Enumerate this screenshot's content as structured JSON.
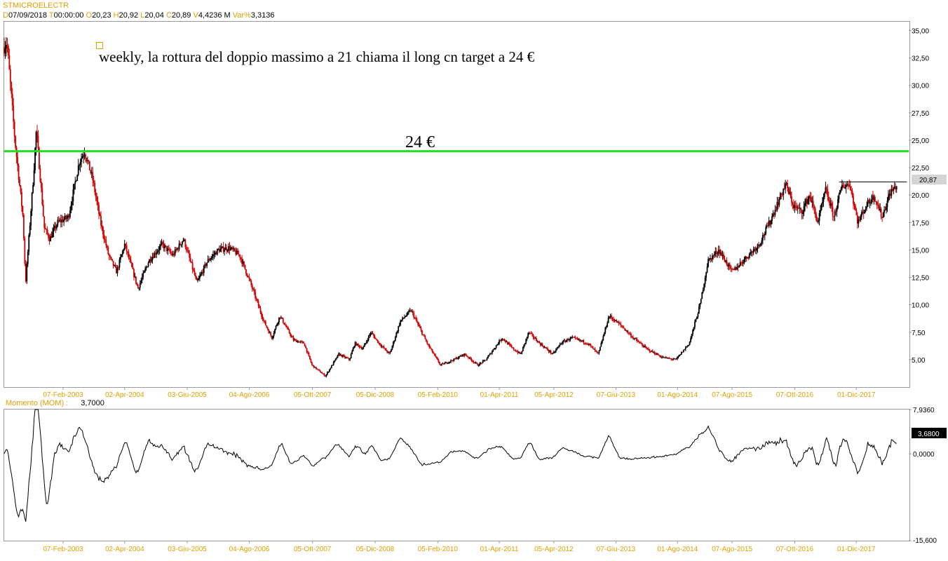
{
  "header": {
    "symbol": "STMICROELECTR",
    "date_key": "D",
    "date": "07/09/2018",
    "time_key": "T",
    "time": "00:00:00",
    "open_key": "O",
    "open": "20,23",
    "high_key": "H",
    "high": "20,92",
    "low_key": "L",
    "low": "20,04",
    "close_key": "C",
    "close": "20,89",
    "volume_key": "V",
    "volume": "4,4236 M",
    "varpct_key": "Var%",
    "varpct": "3,3136"
  },
  "annotations": {
    "main_text": "weekly, la rottura del doppio massimo a 21 chiama il long cn target a 24 €",
    "target_label": "24 €"
  },
  "colors": {
    "target_line": "#22dd22",
    "up": "#000000",
    "down": "#cc0000",
    "axis_text": "#e0a000",
    "last_price_badge": "#d4d4d4"
  },
  "chart_data": [
    {
      "type": "candlestick",
      "title": "",
      "last_price_label": "20,87",
      "ylim": [
        2.5,
        35.8
      ],
      "y_ticks": [
        "35,00",
        "32,50",
        "30,00",
        "27,50",
        "25,00",
        "22,50",
        "20,00",
        "17,50",
        "15,00",
        "12,50",
        "10,00",
        "7,50",
        "5,00"
      ],
      "y_tick_values": [
        35,
        32.5,
        30,
        27.5,
        25,
        22.5,
        20,
        17.5,
        15,
        12.5,
        10,
        7.5,
        5
      ],
      "x_ticks": [
        "07-Feb-2003",
        "02-Apr-2004",
        "03-Giu-2005",
        "04-Ago-2006",
        "05-Ott-2007",
        "05-Dic-2008",
        "05-Feb-2010",
        "01-Apr-2011",
        "05-Apr-2012",
        "07-Giu-2013",
        "01-Ago-2014",
        "07-Ago-2015",
        "07-Ott-2016",
        "01-Dic-2017"
      ],
      "x_tick_years": [
        2003.1,
        2004.25,
        2005.42,
        2006.58,
        2007.76,
        2008.93,
        2010.1,
        2011.25,
        2012.27,
        2013.43,
        2014.58,
        2015.6,
        2016.77,
        2017.92
      ],
      "x_range": [
        2002.0,
        2018.9
      ],
      "target_level": 24,
      "resistance_level": 21.2,
      "resistance_from": 2017.6,
      "path_years": [
        2002.0,
        2002.05,
        2002.2,
        2002.35,
        2002.4,
        2002.55,
        2002.6,
        2002.75,
        2002.85,
        2003.0,
        2003.2,
        2003.4,
        2003.5,
        2003.65,
        2003.8,
        2003.95,
        2004.1,
        2004.25,
        2004.5,
        2004.7,
        2004.95,
        2005.15,
        2005.35,
        2005.6,
        2005.8,
        2006.0,
        2006.2,
        2006.4,
        2006.6,
        2006.85,
        2007.0,
        2007.15,
        2007.4,
        2007.6,
        2007.75,
        2008.0,
        2008.25,
        2008.45,
        2008.55,
        2008.7,
        2008.85,
        2009.0,
        2009.2,
        2009.4,
        2009.6,
        2009.9,
        2010.15,
        2010.4,
        2010.6,
        2010.85,
        2011.0,
        2011.15,
        2011.3,
        2011.5,
        2011.65,
        2011.8,
        2012.0,
        2012.25,
        2012.4,
        2012.6,
        2012.9,
        2013.1,
        2013.3,
        2013.55,
        2013.75,
        2014.0,
        2014.3,
        2014.55,
        2014.8,
        2015.0,
        2015.15,
        2015.35,
        2015.6,
        2015.9,
        2016.1,
        2016.3,
        2016.6,
        2016.75,
        2016.9,
        2017.05,
        2017.2,
        2017.35,
        2017.5,
        2017.65,
        2017.8,
        2017.95,
        2018.1,
        2018.25,
        2018.4,
        2018.55,
        2018.68
      ],
      "path_prices": [
        33.5,
        34.0,
        25.0,
        18.0,
        12.0,
        22.0,
        26.0,
        17.0,
        16.0,
        17.5,
        18.0,
        23.0,
        24.0,
        21.5,
        17.5,
        14.5,
        13.0,
        15.5,
        11.5,
        14.0,
        15.5,
        14.5,
        16.0,
        12.0,
        14.0,
        15.0,
        15.2,
        14.5,
        12.0,
        8.5,
        7.0,
        9.0,
        6.8,
        6.5,
        4.5,
        3.5,
        5.5,
        5.0,
        6.5,
        6.0,
        7.5,
        6.5,
        5.5,
        8.5,
        9.5,
        6.5,
        4.5,
        5.0,
        5.5,
        4.5,
        5.0,
        6.0,
        7.0,
        6.0,
        5.5,
        7.5,
        6.5,
        5.5,
        6.5,
        7.0,
        6.5,
        5.5,
        9.0,
        8.0,
        7.0,
        6.0,
        5.2,
        5.0,
        6.5,
        10.0,
        14.0,
        15.0,
        13.0,
        14.5,
        15.5,
        17.5,
        21.0,
        19.0,
        18.5,
        20.0,
        17.5,
        20.5,
        18.0,
        20.8,
        21.0,
        17.5,
        19.0,
        20.0,
        18.0,
        20.2,
        20.89
      ]
    },
    {
      "type": "line",
      "title": "Momento (MOM)",
      "value_label": "3,7000",
      "last_value_label": "3,6800",
      "ylim": [
        -15.6,
        7.936
      ],
      "y_ticks": [
        "7,9360",
        "0,0000",
        "-15,600"
      ],
      "y_tick_values": [
        7.936,
        0,
        -15.6
      ],
      "x_ticks": [
        "07-Feb-2003",
        "02-Apr-2004",
        "03-Giu-2005",
        "04-Ago-2006",
        "05-Ott-2007",
        "05-Dic-2008",
        "05-Feb-2010",
        "01-Apr-2011",
        "05-Apr-2012",
        "07-Giu-2013",
        "01-Ago-2014",
        "07-Ago-2015",
        "07-Ott-2016",
        "01-Dic-2017"
      ]
    }
  ]
}
